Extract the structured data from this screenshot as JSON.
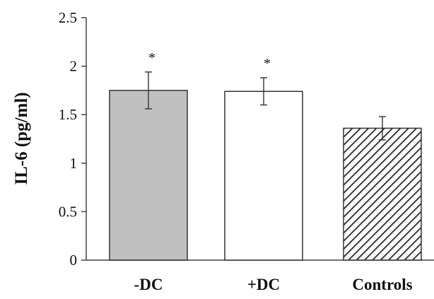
{
  "chart_data": {
    "type": "bar",
    "title": "",
    "xlabel": "",
    "ylabel": "IL-6 (pg/ml)",
    "ylim": [
      0,
      2.5
    ],
    "yticks": [
      0,
      0.5,
      1,
      1.5,
      2,
      2.5
    ],
    "ytick_labels": [
      "0",
      "0.5",
      "1",
      "1.5",
      "2",
      "2.5"
    ],
    "categories": [
      "-DC",
      "+DC",
      "Controls"
    ],
    "values": [
      1.75,
      1.74,
      1.36
    ],
    "errors": [
      0.19,
      0.14,
      0.12
    ],
    "annotations": [
      "*",
      "*",
      ""
    ],
    "bar_styles": [
      {
        "fill": "#c0c0c0",
        "pattern": "solid"
      },
      {
        "fill": "#ffffff",
        "pattern": "solid"
      },
      {
        "fill": "#ffffff",
        "pattern": "diagonal-hatch"
      }
    ],
    "grid": false,
    "legend": "none"
  }
}
